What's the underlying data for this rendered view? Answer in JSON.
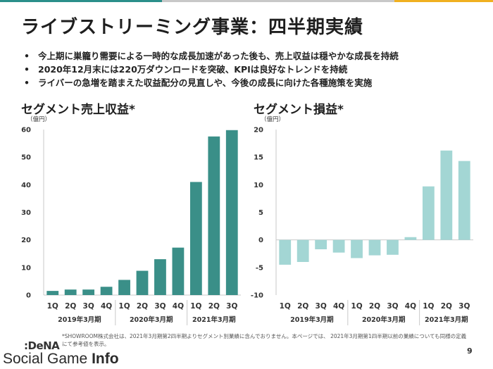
{
  "header": {
    "title": "ライブストリーミング事業：四半期実績",
    "top_bar_colors": [
      "#2b8f8a",
      "#c8c8c8",
      "#f0b020"
    ]
  },
  "bullets": [
    "今上期に巣籠り需要による一時的な成長加速があった後も、売上収益は穏やかな成長を持続",
    "2020年12月末には220万ダウンロードを突破、KPIは良好なトレンドを持続",
    "ライバーの急増を踏まえた収益配分の見直しや、今後の成長に向けた各種施策を実施"
  ],
  "bullet_marker": "•",
  "chart_data": [
    {
      "type": "bar",
      "title": "セグメント売上収益*",
      "ylabel": "（億円）",
      "ylim": [
        0,
        60
      ],
      "yticks": [
        0,
        10,
        20,
        30,
        40,
        50,
        60
      ],
      "categories": [
        "1Q",
        "2Q",
        "3Q",
        "4Q",
        "1Q",
        "2Q",
        "3Q",
        "4Q",
        "1Q",
        "2Q",
        "3Q"
      ],
      "groups": [
        {
          "label": "2019年3月期",
          "count": 4
        },
        {
          "label": "2020年3月期",
          "count": 4
        },
        {
          "label": "2021年3月期",
          "count": 3
        }
      ],
      "values": [
        1.5,
        2.0,
        2.0,
        3.0,
        5.5,
        8.8,
        13.0,
        17.2,
        41.0,
        57.5,
        59.8
      ],
      "color": "#3a8f88",
      "grid": false
    },
    {
      "type": "bar",
      "title": "セグメント損益*",
      "ylabel": "（億円）",
      "ylim": [
        -10,
        20
      ],
      "yticks": [
        -10,
        -5,
        0,
        5,
        10,
        15,
        20
      ],
      "categories": [
        "1Q",
        "2Q",
        "3Q",
        "4Q",
        "1Q",
        "2Q",
        "3Q",
        "4Q",
        "1Q",
        "2Q",
        "3Q"
      ],
      "groups": [
        {
          "label": "2019年3月期",
          "count": 4
        },
        {
          "label": "2020年3月期",
          "count": 4
        },
        {
          "label": "2021年3月期",
          "count": 3
        }
      ],
      "values": [
        -4.5,
        -4.0,
        -1.7,
        -2.3,
        -3.3,
        -2.8,
        -2.7,
        0.5,
        9.7,
        16.2,
        14.3
      ],
      "color": "#a3d6d4",
      "grid": false
    }
  ],
  "footnote": "*SHOWROOM株式会社は、2021年3月期第2四半期よりセグメント別業績に含んでおりません。本ページでは、 2021年3月期第1四半期以前の業績についても同様の定義にて参考値を表示。",
  "page_number": "9",
  "logos": {
    "dena": "DeNA",
    "site_part1": "Social Game",
    "site_part2": "Info"
  }
}
